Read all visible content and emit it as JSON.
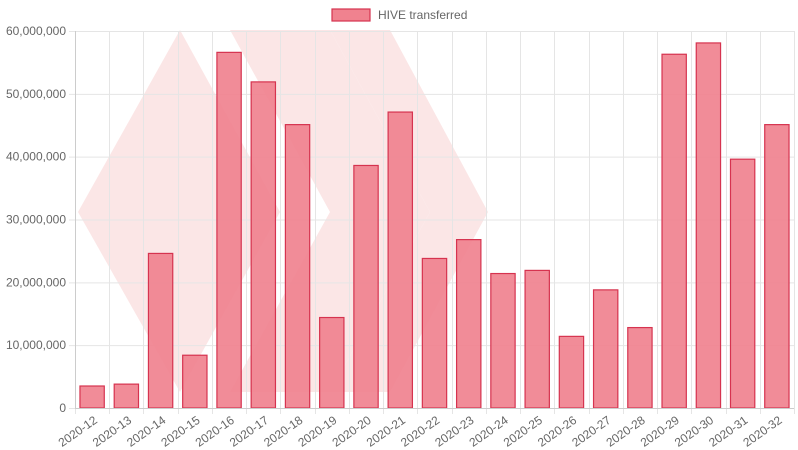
{
  "colors": {
    "bar_fill": "#f0828f",
    "bar_stroke": "#d6334f",
    "grid": "#e5e5e5",
    "text": "#666666",
    "watermark": "#fbe6e6"
  },
  "chart_data": {
    "type": "bar",
    "title": "",
    "xlabel": "",
    "ylabel": "",
    "legend_position": "top",
    "grid": true,
    "categories": [
      "2020-12",
      "2020-13",
      "2020-14",
      "2020-15",
      "2020-16",
      "2020-17",
      "2020-18",
      "2020-19",
      "2020-20",
      "2020-21",
      "2020-22",
      "2020-23",
      "2020-24",
      "2020-25",
      "2020-26",
      "2020-27",
      "2020-28",
      "2020-29",
      "2020-30",
      "2020-31",
      "2020-32"
    ],
    "series": [
      {
        "name": "HIVE transferred",
        "values": [
          3500000,
          3800000,
          24600000,
          8400000,
          56600000,
          51900000,
          45100000,
          14400000,
          38600000,
          47100000,
          23800000,
          26800000,
          21400000,
          21900000,
          11400000,
          18800000,
          12800000,
          56300000,
          58100000,
          39600000,
          45100000
        ]
      }
    ],
    "ylim": [
      0,
      60000000
    ],
    "yticks": [
      0,
      10000000,
      20000000,
      30000000,
      40000000,
      50000000,
      60000000
    ],
    "ytick_labels": [
      "0",
      "10,000,000",
      "20,000,000",
      "30,000,000",
      "40,000,000",
      "50,000,000",
      "60,000,000"
    ]
  }
}
